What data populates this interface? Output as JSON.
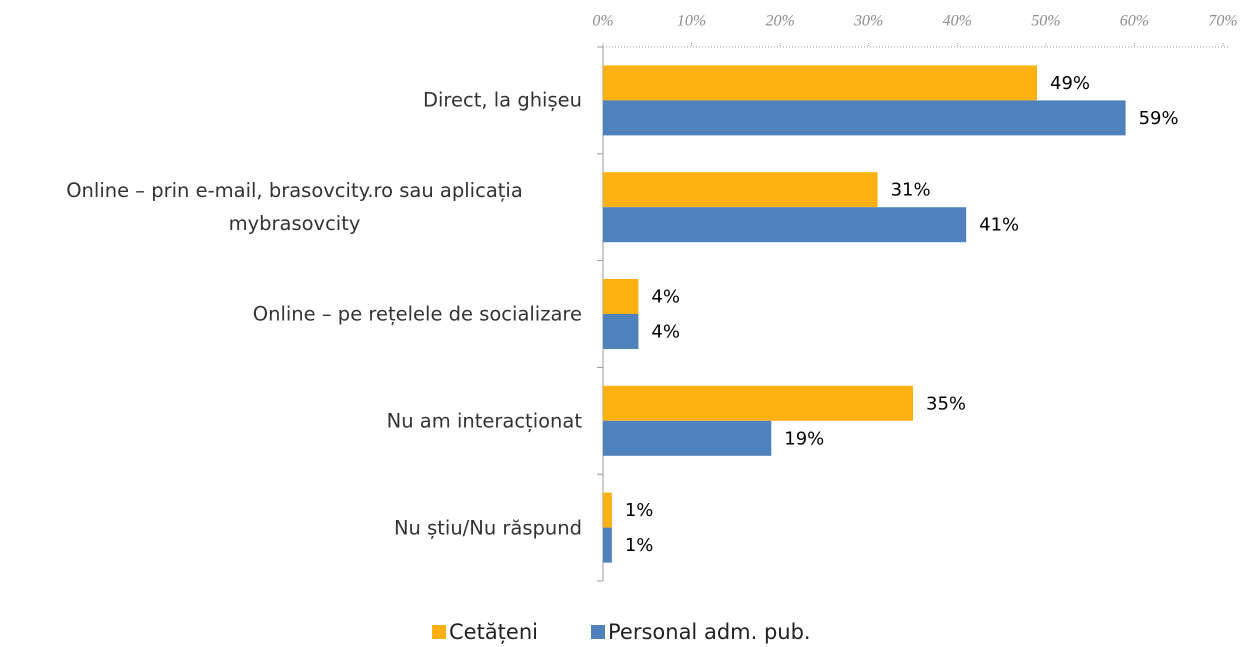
{
  "chart_data": {
    "type": "bar",
    "orientation": "horizontal",
    "categories": [
      "Direct, la ghișeu",
      "Online – prin e-mail, brasovcity.ro sau aplicația mybrasovcity",
      "Online – pe rețelele de socializare",
      "Nu am interacționat",
      "Nu știu/Nu răspund"
    ],
    "series": [
      {
        "name": "Cetățeni",
        "color": "#fdb011",
        "values": [
          49,
          31,
          4,
          35,
          1
        ],
        "value_labels": [
          "49%",
          "31%",
          "4%",
          "35%",
          "1%"
        ]
      },
      {
        "name": "Personal adm. pub.",
        "color": "#4f81bd",
        "values": [
          59,
          41,
          4,
          19,
          1
        ],
        "value_labels": [
          "59%",
          "41%",
          "4%",
          "19%",
          "1%"
        ]
      }
    ],
    "xlim": [
      0,
      70
    ],
    "xticks": [
      {
        "value": 0,
        "label": "0%"
      },
      {
        "value": 10,
        "label": "10%"
      },
      {
        "value": 20,
        "label": "20%"
      },
      {
        "value": 30,
        "label": "30%"
      },
      {
        "value": 40,
        "label": "40%"
      },
      {
        "value": 50,
        "label": "50%"
      },
      {
        "value": 60,
        "label": "60%"
      },
      {
        "value": 70,
        "label": "70%"
      }
    ],
    "legend": "bottom"
  }
}
